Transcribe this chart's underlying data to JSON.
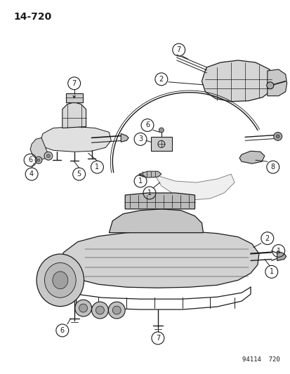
{
  "page_number": "14-720",
  "catalog_number": "94114  720",
  "bg_color": "#ffffff",
  "line_color": "#1a1a1a",
  "fig_w": 4.14,
  "fig_h": 5.33,
  "dpi": 100
}
